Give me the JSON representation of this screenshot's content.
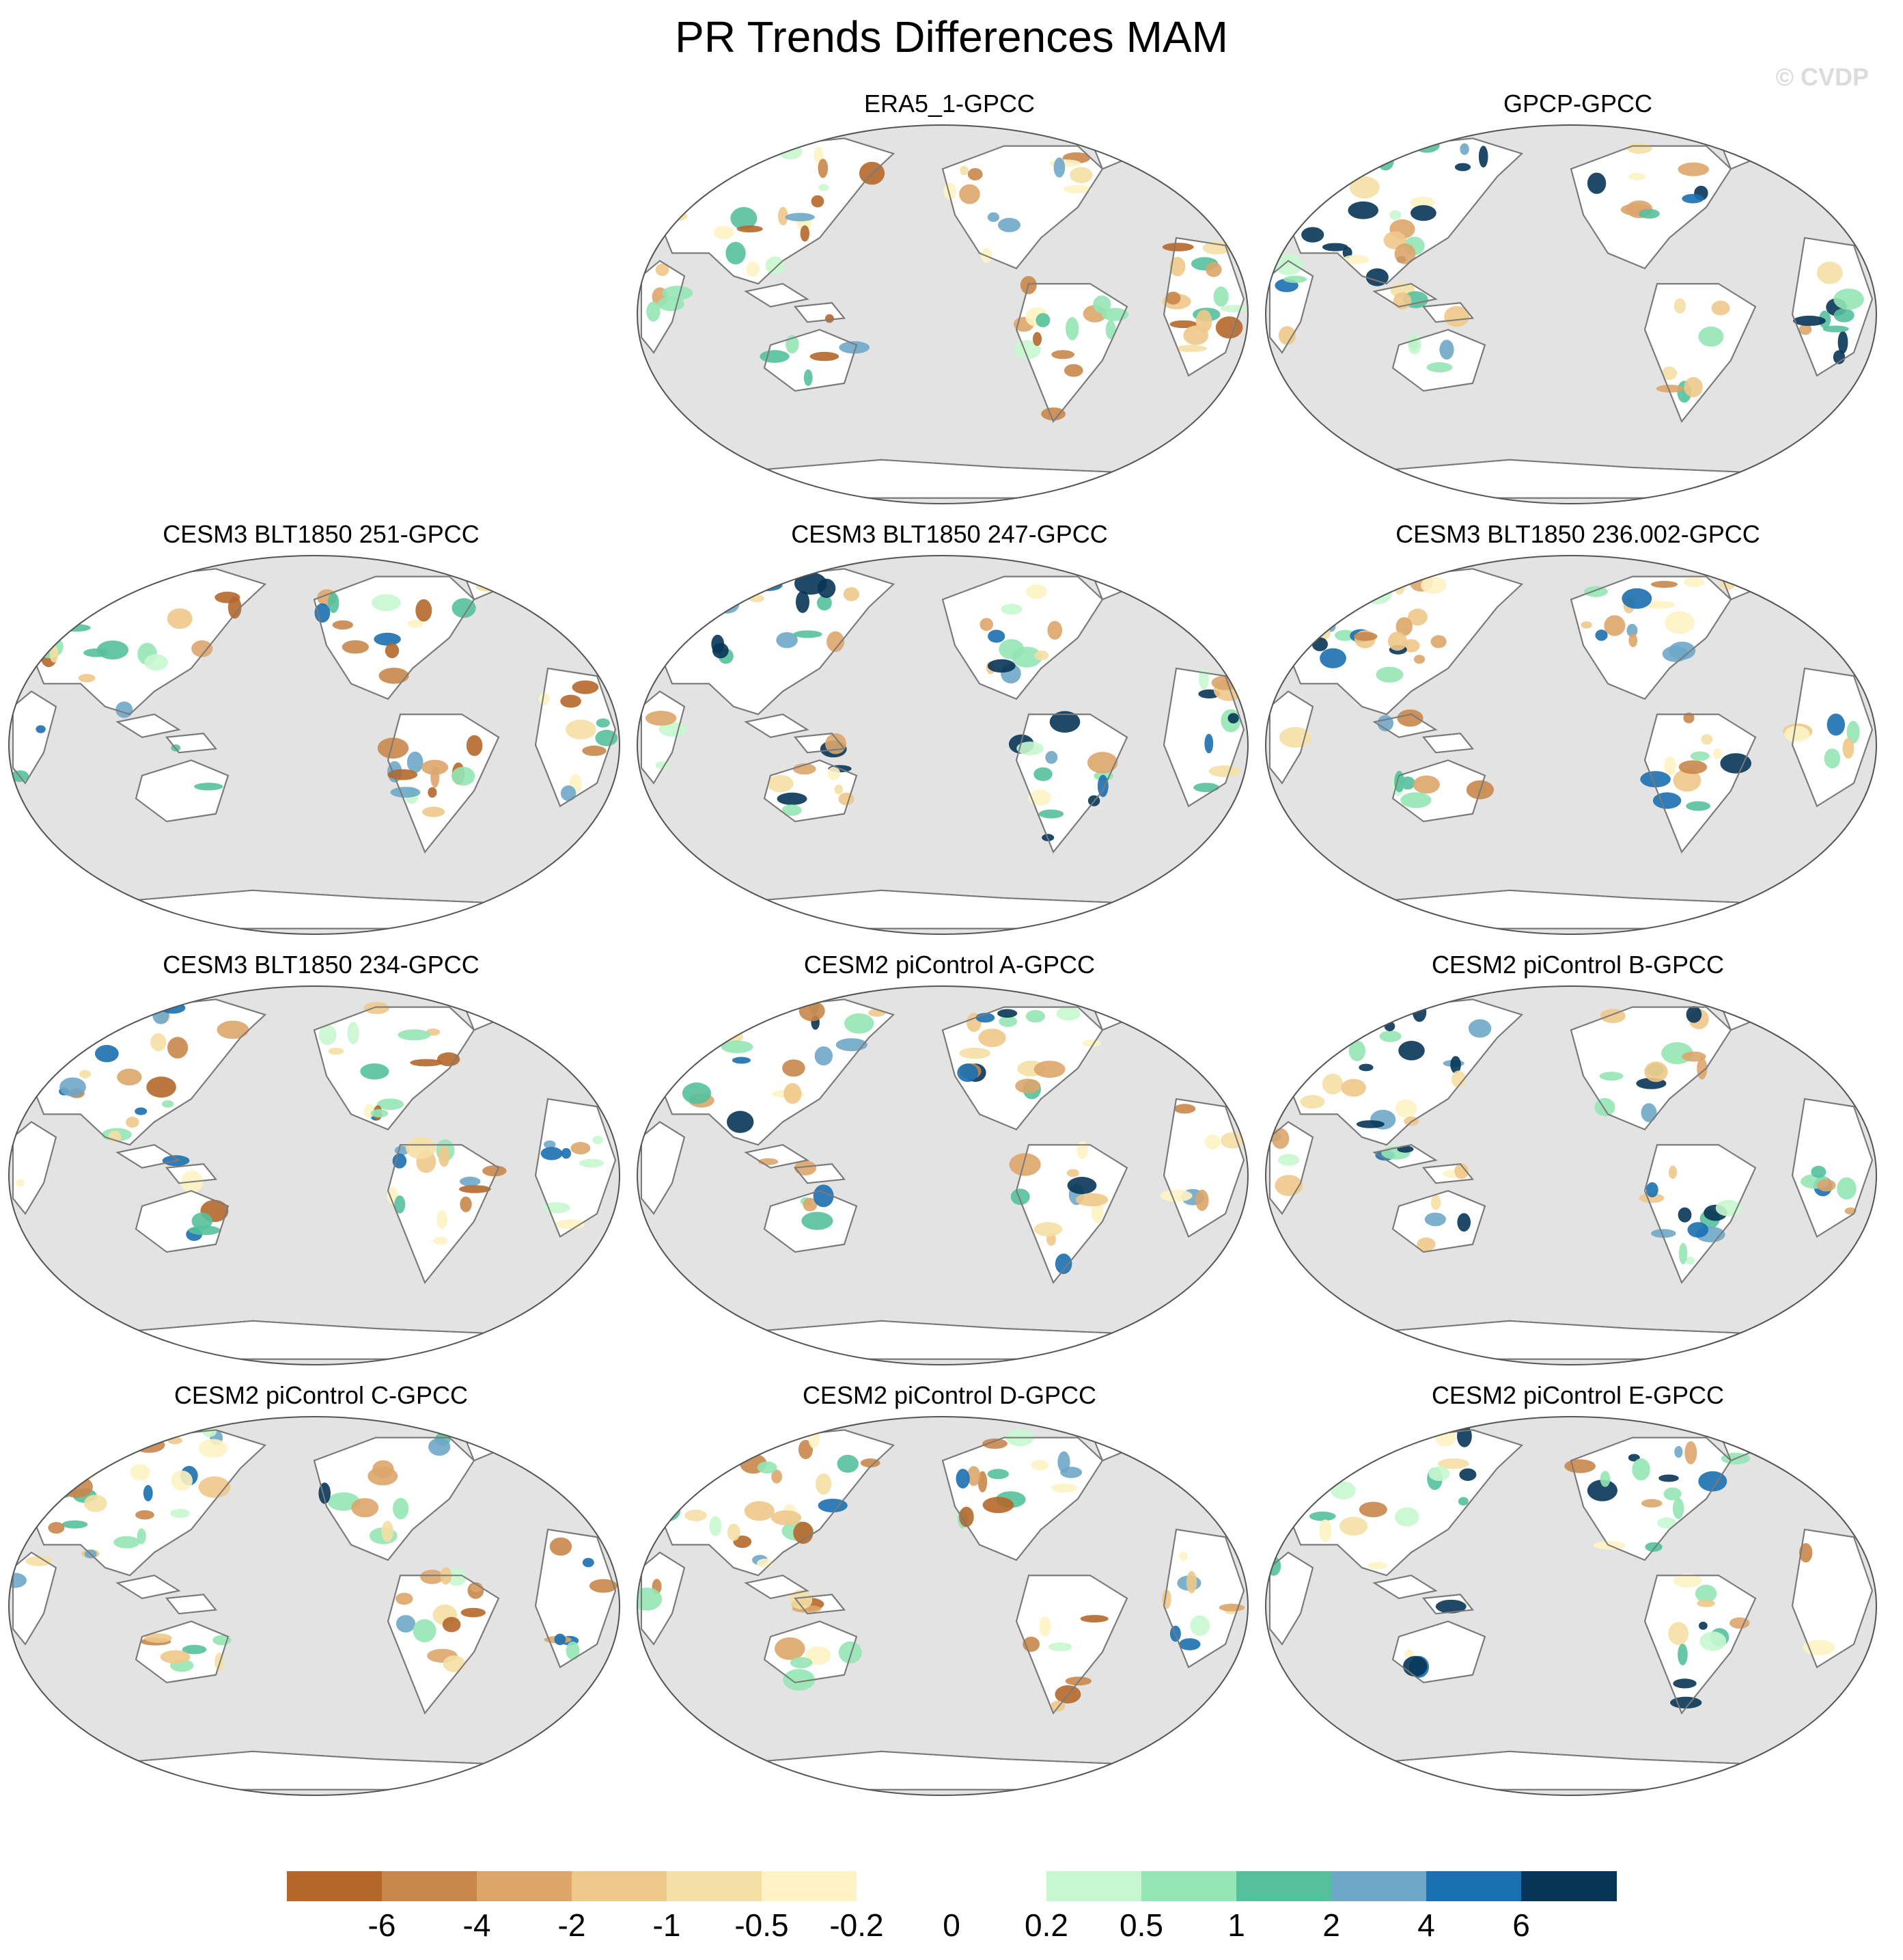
{
  "title": "PR Trends Differences MAM",
  "watermark": "© CVDP",
  "colors": {
    "ocean": "#e3e3e3",
    "land": "#ffffff",
    "coast": "#7a7a7a"
  },
  "panels": [
    {
      "title": "ERA5_1-GPCC",
      "row": 0,
      "col": 1,
      "seed": 11,
      "bias": -0.3
    },
    {
      "title": "GPCP-GPCC",
      "row": 0,
      "col": 2,
      "seed": 23,
      "bias": 0.4
    },
    {
      "title": "CESM3 BLT1850 251-GPCC",
      "row": 1,
      "col": 0,
      "seed": 37,
      "bias": -0.2
    },
    {
      "title": "CESM3 BLT1850 247-GPCC",
      "row": 1,
      "col": 1,
      "seed": 41,
      "bias": 0.3
    },
    {
      "title": "CESM3 BLT1850 236.002-GPCC",
      "row": 1,
      "col": 2,
      "seed": 53,
      "bias": 0.1
    },
    {
      "title": "CESM3 BLT1850 234-GPCC",
      "row": 2,
      "col": 0,
      "seed": 67,
      "bias": -0.1
    },
    {
      "title": "CESM2 piControl A-GPCC",
      "row": 2,
      "col": 1,
      "seed": 71,
      "bias": 0.2
    },
    {
      "title": "CESM2 piControl B-GPCC",
      "row": 2,
      "col": 2,
      "seed": 83,
      "bias": 0.3
    },
    {
      "title": "CESM2 piControl C-GPCC",
      "row": 3,
      "col": 0,
      "seed": 97,
      "bias": 0.0
    },
    {
      "title": "CESM2 piControl D-GPCC",
      "row": 3,
      "col": 1,
      "seed": 101,
      "bias": -0.1
    },
    {
      "title": "CESM2 piControl E-GPCC",
      "row": 3,
      "col": 2,
      "seed": 113,
      "bias": 0.2
    }
  ],
  "colorbar": {
    "labels": [
      "-6",
      "-4",
      "-2",
      "-1",
      "-0.5",
      "-0.2",
      "0",
      "0.2",
      "0.5",
      "1",
      "2",
      "4",
      "6"
    ],
    "colors": [
      "#b5672a",
      "#c9864a",
      "#dca56a",
      "#eec88a",
      "#f4dfa4",
      "#fdf3c4",
      "#ffffff",
      "#ffffff",
      "#c6f7cf",
      "#94e6b5",
      "#55c19c",
      "#6ea7c8",
      "#1a6fb0",
      "#073557"
    ]
  }
}
